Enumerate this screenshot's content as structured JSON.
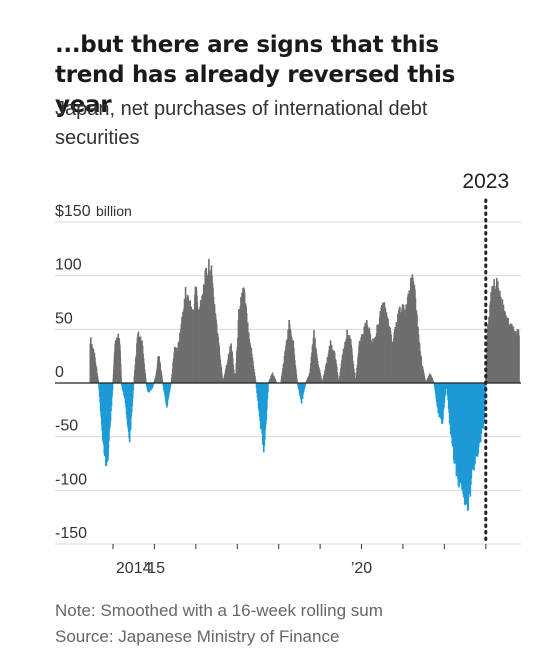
{
  "header": {
    "title": "...but there are signs that this trend has already reversed this year",
    "subtitle": "Japan, net purchases of international debt securities"
  },
  "notes": {
    "note": "Note: Smoothed with a 16-week rolling sum",
    "source": "Source: Japanese Ministry of Finance"
  },
  "colors": {
    "positive": "#6e6e6e",
    "negative": "#1d9bd6",
    "grid": "#d9d9d9",
    "zero": "#222222"
  },
  "chart_data": {
    "type": "area",
    "title": "...but there are signs that this trend has already reversed this year",
    "subtitle": "Japan, net purchases of international debt securities",
    "ylabel": "",
    "ylim": [
      -150,
      150
    ],
    "yticks": [
      {
        "value": 150,
        "label": "$150",
        "unit": "billion"
      },
      {
        "value": 100,
        "label": "100"
      },
      {
        "value": 50,
        "label": "50"
      },
      {
        "value": 0,
        "label": "0"
      },
      {
        "value": -50,
        "label": "-50"
      },
      {
        "value": -100,
        "label": "-100"
      },
      {
        "value": -150,
        "label": "-150"
      }
    ],
    "xlim": [
      2012.6,
      2023.85
    ],
    "xticks": [
      {
        "value": 2014.0,
        "label": ""
      },
      {
        "value": 2015.0,
        "label": ""
      },
      {
        "value": 2016.0,
        "label": ""
      },
      {
        "value": 2017.0,
        "label": ""
      },
      {
        "value": 2018.0,
        "label": ""
      },
      {
        "value": 2019.0,
        "label": ""
      },
      {
        "value": 2020.0,
        "label": ""
      },
      {
        "value": 2021.0,
        "label": ""
      },
      {
        "value": 2022.0,
        "label": ""
      },
      {
        "value": 2023.0,
        "label": ""
      }
    ],
    "xticklabels": [
      {
        "value": 2014.5,
        "label": "2014"
      },
      {
        "value": 2015.0,
        "label": "’15"
      },
      {
        "value": 2020.0,
        "label": "’20"
      }
    ],
    "annotation": {
      "label": "2023",
      "x": 2023.0
    },
    "grid": true,
    "series": [
      {
        "x": [
          2013.45,
          2013.55,
          2013.65,
          2013.75,
          2013.85,
          2013.9,
          2014.0,
          2014.05,
          2014.15,
          2014.2,
          2014.3,
          2014.4,
          2014.5,
          2014.6,
          2014.7,
          2014.8,
          2014.85,
          2014.95,
          2015.05,
          2015.1,
          2015.2,
          2015.3,
          2015.4,
          2015.5,
          2015.55,
          2015.65,
          2015.75,
          2015.85,
          2015.95,
          2016.0,
          2016.05,
          2016.15,
          2016.25,
          2016.35,
          2016.45,
          2016.55,
          2016.65,
          2016.75,
          2016.85,
          2016.95,
          2017.05,
          2017.15,
          2017.25,
          2017.35,
          2017.45,
          2017.55,
          2017.65,
          2017.75,
          2017.85,
          2017.95,
          2018.05,
          2018.15,
          2018.25,
          2018.35,
          2018.45,
          2018.55,
          2018.65,
          2018.75,
          2018.85,
          2018.95,
          2019.05,
          2019.15,
          2019.25,
          2019.35,
          2019.45,
          2019.55,
          2019.65,
          2019.75,
          2019.85,
          2019.95,
          2020.05,
          2020.15,
          2020.25,
          2020.35,
          2020.45,
          2020.55,
          2020.65,
          2020.75,
          2020.85,
          2020.95,
          2021.05,
          2021.15,
          2021.25,
          2021.35,
          2021.45,
          2021.55,
          2021.65,
          2021.75,
          2021.85,
          2021.95,
          2022.05,
          2022.15,
          2022.25,
          2022.35,
          2022.45,
          2022.55,
          2022.65,
          2022.75,
          2022.85,
          2022.95,
          2023.0,
          2023.05,
          2023.15,
          2023.25,
          2023.35,
          2023.45,
          2023.55,
          2023.65,
          2023.75,
          2023.8
        ],
        "values": [
          45,
          30,
          0,
          -55,
          -85,
          -60,
          0,
          40,
          50,
          0,
          -20,
          -60,
          0,
          50,
          40,
          0,
          -10,
          -5,
          10,
          30,
          0,
          -25,
          0,
          40,
          30,
          60,
          90,
          80,
          70,
          100,
          70,
          90,
          110,
          120,
          80,
          40,
          0,
          20,
          40,
          0,
          80,
          95,
          60,
          30,
          0,
          -40,
          -70,
          0,
          10,
          0,
          0,
          30,
          60,
          40,
          0,
          -20,
          0,
          10,
          50,
          20,
          0,
          20,
          40,
          30,
          0,
          30,
          50,
          40,
          0,
          40,
          55,
          60,
          40,
          50,
          70,
          80,
          60,
          40,
          60,
          80,
          70,
          95,
          105,
          60,
          20,
          0,
          10,
          0,
          -30,
          -40,
          0,
          -50,
          -80,
          -100,
          -110,
          -125,
          -100,
          -80,
          -60,
          -40,
          0,
          60,
          95,
          100,
          90,
          70,
          60,
          55,
          50,
          50
        ]
      }
    ]
  }
}
